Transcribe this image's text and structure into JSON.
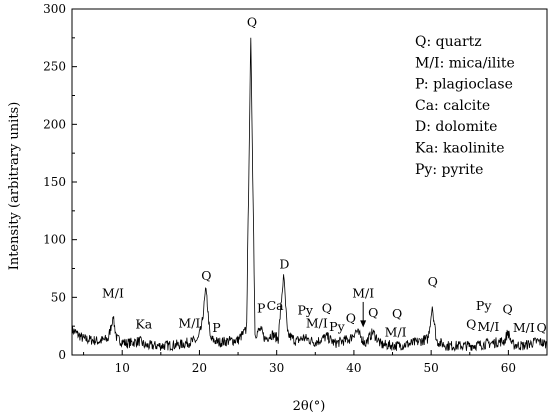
{
  "chart_data": {
    "type": "line",
    "xlabel": "2θ(°)",
    "ylabel": "Intensity (arbitrary units)",
    "xlim": [
      3.5,
      65
    ],
    "ylim": [
      0,
      300
    ],
    "xticks": [
      10,
      20,
      30,
      40,
      50,
      60
    ],
    "yticks": [
      0,
      50,
      100,
      150,
      200,
      250,
      300
    ],
    "grid": false,
    "series": [
      {
        "x": [
          3.5,
          5,
          7,
          8.2,
          8.8,
          9.3,
          10.5,
          12.3,
          13,
          15,
          17.5,
          19.8,
          20.3,
          20.85,
          21.4,
          22.5,
          23.5,
          25,
          26.1,
          26.65,
          27.2,
          27.9,
          28.5,
          29.4,
          30.2,
          30.9,
          31.4,
          32.5,
          33.5,
          35,
          36.5,
          37.5,
          39.5,
          40.3,
          41.5,
          42.45,
          43.5,
          45.5,
          47.5,
          49.6,
          50.15,
          50.7,
          52,
          54.9,
          56.5,
          59.5,
          59.95,
          60.5,
          62,
          63.8,
          65
        ],
        "y": [
          22,
          14,
          12,
          14,
          33,
          14,
          10,
          12,
          8,
          8,
          9,
          13,
          25,
          58,
          14,
          11,
          12,
          13,
          22,
          275,
          18,
          22,
          14,
          18,
          14,
          70,
          18,
          12,
          15,
          11,
          16,
          10,
          14,
          21,
          10,
          20,
          9,
          8,
          10,
          14,
          42,
          12,
          8,
          8,
          9,
          12,
          20,
          9,
          8,
          12,
          9
        ]
      }
    ],
    "peak_labels": [
      {
        "text": "M/I",
        "x": 8.8,
        "y": 50
      },
      {
        "text": "Ka",
        "x": 12.8,
        "y": 23
      },
      {
        "text": "M/I",
        "x": 18.7,
        "y": 24
      },
      {
        "text": "Q",
        "x": 20.9,
        "y": 65
      },
      {
        "text": "P",
        "x": 22.2,
        "y": 20
      },
      {
        "text": "Q",
        "x": 26.8,
        "y": 285
      },
      {
        "text": "P",
        "x": 28.0,
        "y": 37
      },
      {
        "text": "Ca",
        "x": 29.8,
        "y": 39
      },
      {
        "text": "D",
        "x": 31.0,
        "y": 75
      },
      {
        "text": "Py",
        "x": 33.7,
        "y": 35
      },
      {
        "text": "M/I",
        "x": 35.2,
        "y": 24
      },
      {
        "text": "Q",
        "x": 36.5,
        "y": 37
      },
      {
        "text": "Py",
        "x": 37.8,
        "y": 21
      },
      {
        "text": "Q",
        "x": 39.6,
        "y": 28
      },
      {
        "text": "M/I",
        "x": 41.2,
        "y": 50
      },
      {
        "text": "Q",
        "x": 42.5,
        "y": 33
      },
      {
        "text": "M/I",
        "x": 45.4,
        "y": 16
      },
      {
        "text": "Q",
        "x": 45.6,
        "y": 32
      },
      {
        "text": "Q",
        "x": 50.2,
        "y": 60
      },
      {
        "text": "Py",
        "x": 56.8,
        "y": 39
      },
      {
        "text": "Q",
        "x": 55.2,
        "y": 23
      },
      {
        "text": "M/I",
        "x": 57.4,
        "y": 21
      },
      {
        "text": "Q",
        "x": 59.9,
        "y": 36
      },
      {
        "text": "M/I",
        "x": 62.0,
        "y": 20
      },
      {
        "text": "Q",
        "x": 64.3,
        "y": 20
      }
    ],
    "legend": {
      "placement": "top-right",
      "entries": [
        "Q: quartz",
        "M/I: mica/ilite",
        "P: plagioclase",
        "Ca: calcite",
        "D: dolomite",
        "Ka: kaolinite",
        "Py: pyrite"
      ]
    }
  }
}
